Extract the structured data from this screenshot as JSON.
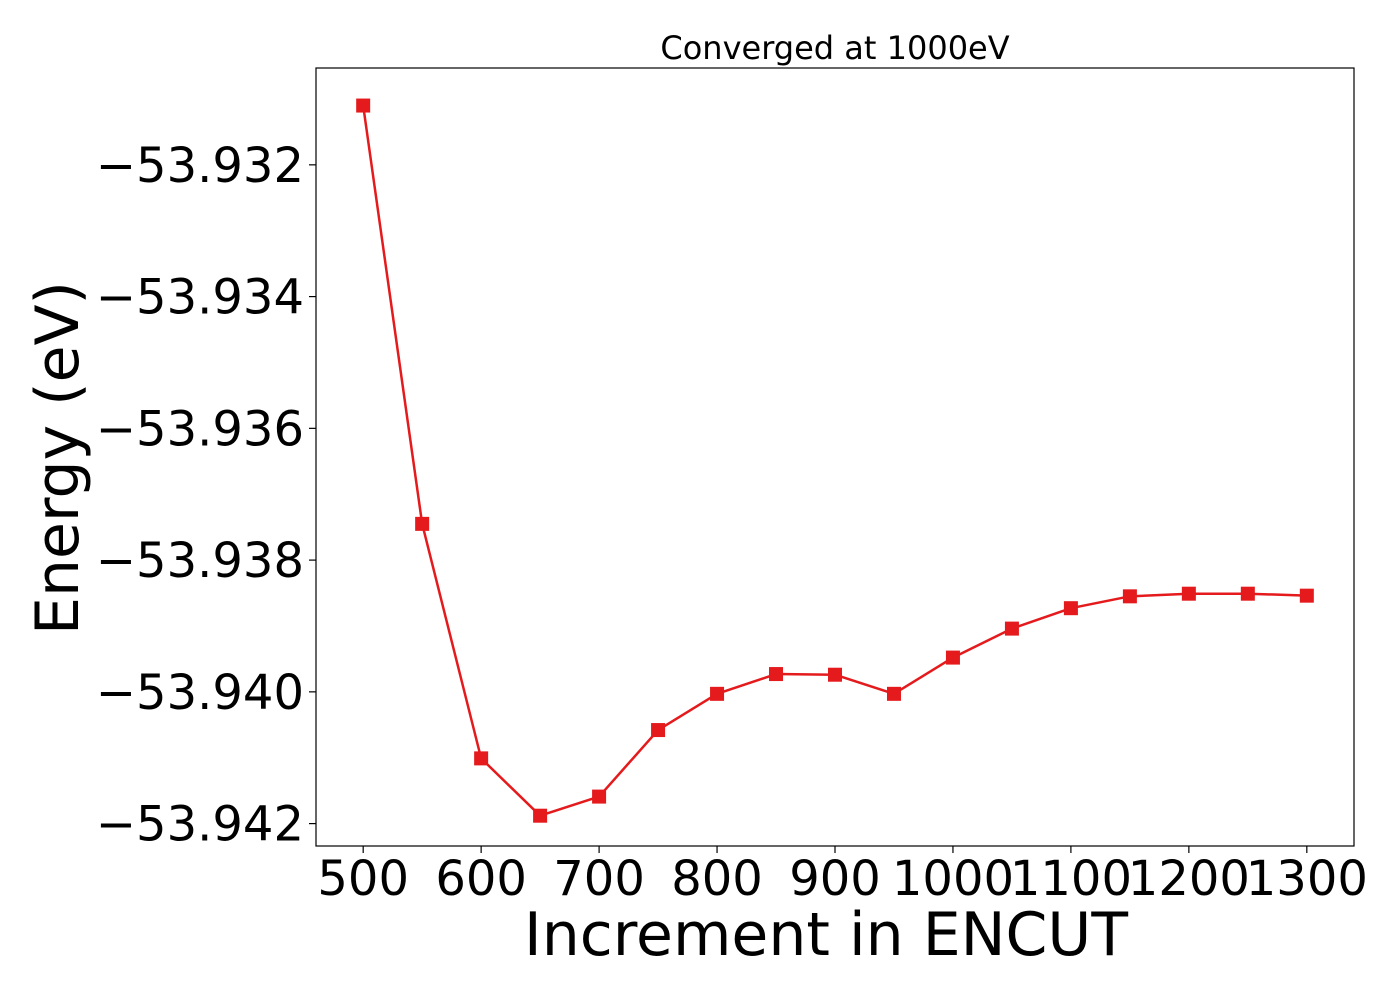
{
  "chart_data": {
    "type": "line",
    "title": "Converged at 1000eV",
    "xlabel": "Increment in ENCUT",
    "ylabel": "Energy (eV)",
    "x": [
      500,
      550,
      600,
      650,
      700,
      750,
      800,
      850,
      900,
      950,
      1000,
      1050,
      1100,
      1150,
      1200,
      1250,
      1300
    ],
    "series": [
      {
        "values": [
          -53.9311,
          -53.93745,
          -53.94101,
          -53.94188,
          -53.94159,
          -53.94058,
          -53.94003,
          -53.93973,
          -53.93974,
          -53.94003,
          -53.93948,
          -53.93904,
          -53.93873,
          -53.93855,
          -53.93851,
          -53.93851,
          -53.93854
        ],
        "color": "#e41a1c",
        "marker": "square"
      }
    ],
    "xticks": [
      500,
      600,
      700,
      800,
      900,
      1000,
      1100,
      1200,
      1300
    ],
    "xtick_labels": [
      "500",
      "600",
      "700",
      "800",
      "900",
      "1000",
      "1100",
      "1200",
      "1300"
    ],
    "yticks": [
      -53.932,
      -53.934,
      -53.936,
      -53.938,
      -53.94,
      -53.942
    ],
    "ytick_labels": [
      "−53.932",
      "−53.934",
      "−53.936",
      "−53.938",
      "−53.940",
      "−53.942"
    ],
    "xlim": [
      460,
      1340
    ],
    "ylim": [
      -53.94234,
      -53.93053
    ],
    "grid": false,
    "legend": "none"
  }
}
